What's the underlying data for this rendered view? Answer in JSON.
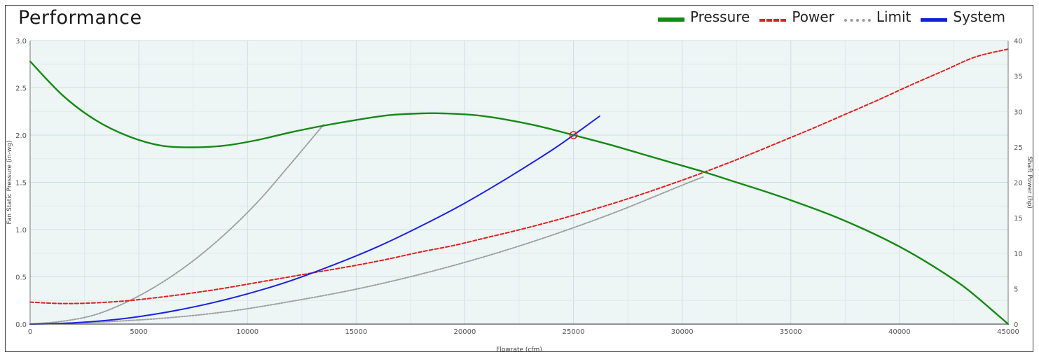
{
  "header": {
    "title": "Performance"
  },
  "legend": [
    {
      "key": "pressure",
      "label": "Pressure"
    },
    {
      "key": "power",
      "label": "Power"
    },
    {
      "key": "limit",
      "label": "Limit"
    },
    {
      "key": "system",
      "label": "System"
    }
  ],
  "colors": {
    "pressure": "#138a13",
    "power": "#e02020",
    "limit": "#a0a0a0",
    "system": "#1a22e0",
    "plot_bg": "#eef5f5",
    "grid": "#cfdede",
    "operating_point": "#e02020"
  },
  "chart_data": {
    "type": "line",
    "xlabel": "Flowrate (cfm)",
    "ylabel": "Fan Static Pressure (in-wg)",
    "y2label": "Shaft Power (hp)",
    "xlim": [
      0,
      45000
    ],
    "ylim": [
      0,
      3.0
    ],
    "y2lim": [
      0,
      40
    ],
    "xticks": [
      0,
      5000,
      10000,
      15000,
      20000,
      25000,
      30000,
      35000,
      40000,
      45000
    ],
    "yticks": [
      "0.0",
      "0.5",
      "1.0",
      "1.5",
      "2.0",
      "2.5",
      "3.0"
    ],
    "y2ticks": [
      0,
      5,
      10,
      15,
      20,
      25,
      30,
      35,
      40
    ],
    "grid": true,
    "legend_position": "top-right",
    "series": [
      {
        "name": "Pressure",
        "axis": "left",
        "style": "solid",
        "x": [
          0,
          1500,
          3000,
          4500,
          6000,
          7500,
          9000,
          10500,
          12000,
          13500,
          15000,
          16500,
          18000,
          19000,
          20500,
          22000,
          23500,
          25000,
          26500,
          28000,
          29500,
          31000,
          32500,
          34000,
          35500,
          37000,
          38500,
          40000,
          41500,
          43000,
          44500,
          45000
        ],
        "y": [
          2.78,
          2.42,
          2.16,
          1.99,
          1.89,
          1.87,
          1.89,
          1.95,
          2.03,
          2.1,
          2.16,
          2.21,
          2.23,
          2.23,
          2.21,
          2.16,
          2.09,
          2.0,
          1.91,
          1.81,
          1.71,
          1.61,
          1.5,
          1.39,
          1.27,
          1.14,
          0.99,
          0.82,
          0.62,
          0.39,
          0.1,
          0.0
        ]
      },
      {
        "name": "Power",
        "axis": "right",
        "style": "dashed",
        "x": [
          0,
          1500,
          3000,
          4500,
          6000,
          7500,
          9000,
          10500,
          12000,
          13500,
          15000,
          16500,
          18000,
          19500,
          21000,
          22500,
          24000,
          25500,
          27000,
          28500,
          30000,
          31500,
          33000,
          34500,
          36000,
          37500,
          39000,
          40500,
          42000,
          43500,
          45000
        ],
        "y": [
          3.1,
          2.9,
          3.0,
          3.3,
          3.8,
          4.4,
          5.1,
          5.9,
          6.7,
          7.5,
          8.3,
          9.2,
          10.2,
          11.1,
          12.2,
          13.3,
          14.5,
          15.8,
          17.2,
          18.7,
          20.3,
          22.0,
          23.8,
          25.7,
          27.6,
          29.6,
          31.6,
          33.7,
          35.7,
          37.7,
          38.8
        ]
      },
      {
        "name": "Limit",
        "axis": "left",
        "style": "dotted",
        "x": [
          0,
          1500,
          3000,
          4500,
          6000,
          7500,
          9000,
          10500,
          12000,
          13500
        ],
        "y": [
          0.0,
          0.03,
          0.1,
          0.24,
          0.43,
          0.67,
          0.96,
          1.3,
          1.7,
          2.11
        ]
      },
      {
        "name": "Limit",
        "axis": "left",
        "style": "dotted",
        "x": [
          0,
          3000,
          6000,
          9000,
          12000,
          15000,
          18000,
          21000,
          24000,
          27000,
          30000,
          31000
        ],
        "y": [
          0.0,
          0.02,
          0.06,
          0.13,
          0.24,
          0.37,
          0.53,
          0.72,
          0.94,
          1.19,
          1.47,
          1.56
        ]
      },
      {
        "name": "System",
        "axis": "left",
        "style": "solid",
        "x": [
          0,
          2000,
          4000,
          6000,
          8000,
          10000,
          12000,
          14000,
          16000,
          18000,
          20000,
          22000,
          24000,
          25000,
          26200
        ],
        "y": [
          0.0,
          0.013,
          0.05,
          0.115,
          0.205,
          0.32,
          0.46,
          0.63,
          0.82,
          1.04,
          1.28,
          1.55,
          1.84,
          2.0,
          2.2
        ]
      }
    ],
    "operating_point": {
      "x": 25000,
      "y": 2.0
    }
  }
}
